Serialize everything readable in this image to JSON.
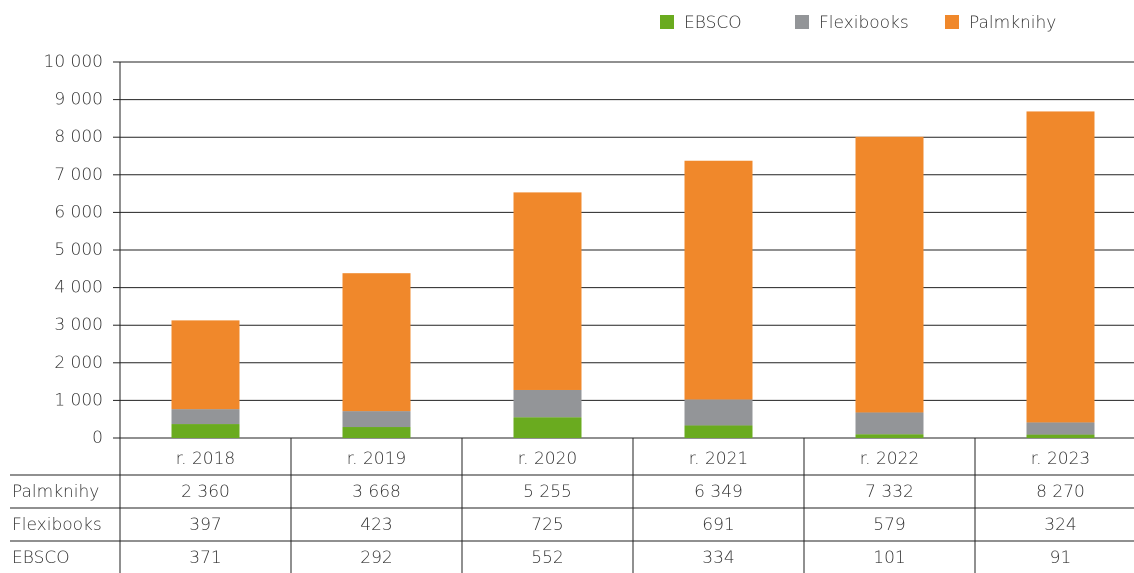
{
  "chart_data": {
    "type": "bar",
    "stacked": true,
    "categories": [
      "r. 2018",
      "r. 2019",
      "r. 2020",
      "r. 2021",
      "r. 2022",
      "r. 2023"
    ],
    "series": [
      {
        "name": "EBSCO",
        "color": "#6aab1f",
        "values": [
          371,
          292,
          552,
          334,
          101,
          91
        ]
      },
      {
        "name": "Flexibooks",
        "color": "#939598",
        "values": [
          397,
          423,
          725,
          691,
          579,
          324
        ]
      },
      {
        "name": "Palmknihy",
        "color": "#f0882b",
        "values": [
          2360,
          3668,
          5255,
          6349,
          7332,
          8270
        ],
        "value_labels": [
          "2 360",
          "3 668",
          "5 255",
          "6 349",
          "7 332",
          "8 270"
        ]
      }
    ],
    "ylim": [
      0,
      10000
    ],
    "yticks": [
      0,
      {
        "value": 1000,
        "label": "1 000"
      },
      {
        "value": 2000,
        "label": "2 000"
      },
      {
        "value": 3000,
        "label": "3 000"
      },
      {
        "value": 4000,
        "label": "4 000"
      },
      {
        "value": 5000,
        "label": "5 000"
      },
      {
        "value": 6000,
        "label": "6 000"
      },
      {
        "value": 7000,
        "label": "7 000"
      },
      {
        "value": 8000,
        "label": "8 000"
      },
      {
        "value": 9000,
        "label": "9 000"
      },
      {
        "value": 10000,
        "label": "10 000"
      }
    ],
    "grid": true,
    "legend": "top-right"
  }
}
